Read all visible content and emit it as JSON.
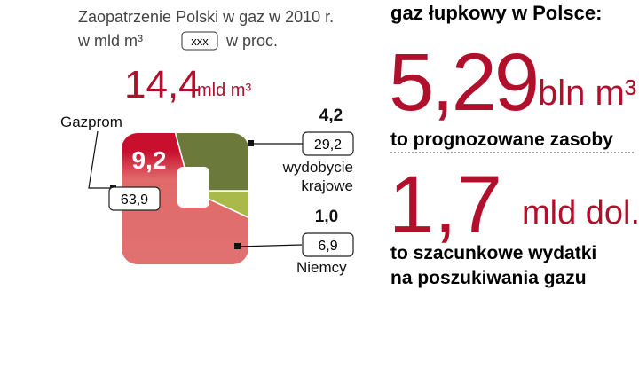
{
  "chart_data": {
    "type": "pie",
    "title": "Zaopatrzenie Polski w gaz w 2010 r.",
    "unit": "w mld m³",
    "legend_key": "xxx",
    "legend_text": "w proc.",
    "total": 14.4,
    "total_label": "14,4",
    "total_unit": "mld m³",
    "categories": [
      "Gazprom",
      "wydobycie krajowe",
      "Niemcy"
    ],
    "amounts": [
      9.2,
      4.2,
      1.0
    ],
    "amount_labels": [
      "9,2",
      "4,2",
      "1,0"
    ],
    "values": [
      63.9,
      29.2,
      6.9
    ],
    "value_labels": [
      "63,9",
      "29,2",
      "6,9"
    ],
    "colors": [
      "#c8102e",
      "#6b7a3a",
      "#a9b94a"
    ]
  },
  "infobox": {
    "heading": "gaz łupkowy w Polsce:",
    "figure1": "5,29",
    "unit1": "bln m³",
    "caption1": "to prognozowane zasoby",
    "figure2": "1,7",
    "unit2": "mld dol.",
    "caption2a": "to szacunkowe wydatki",
    "caption2b": "na poszukiwania gazu"
  }
}
